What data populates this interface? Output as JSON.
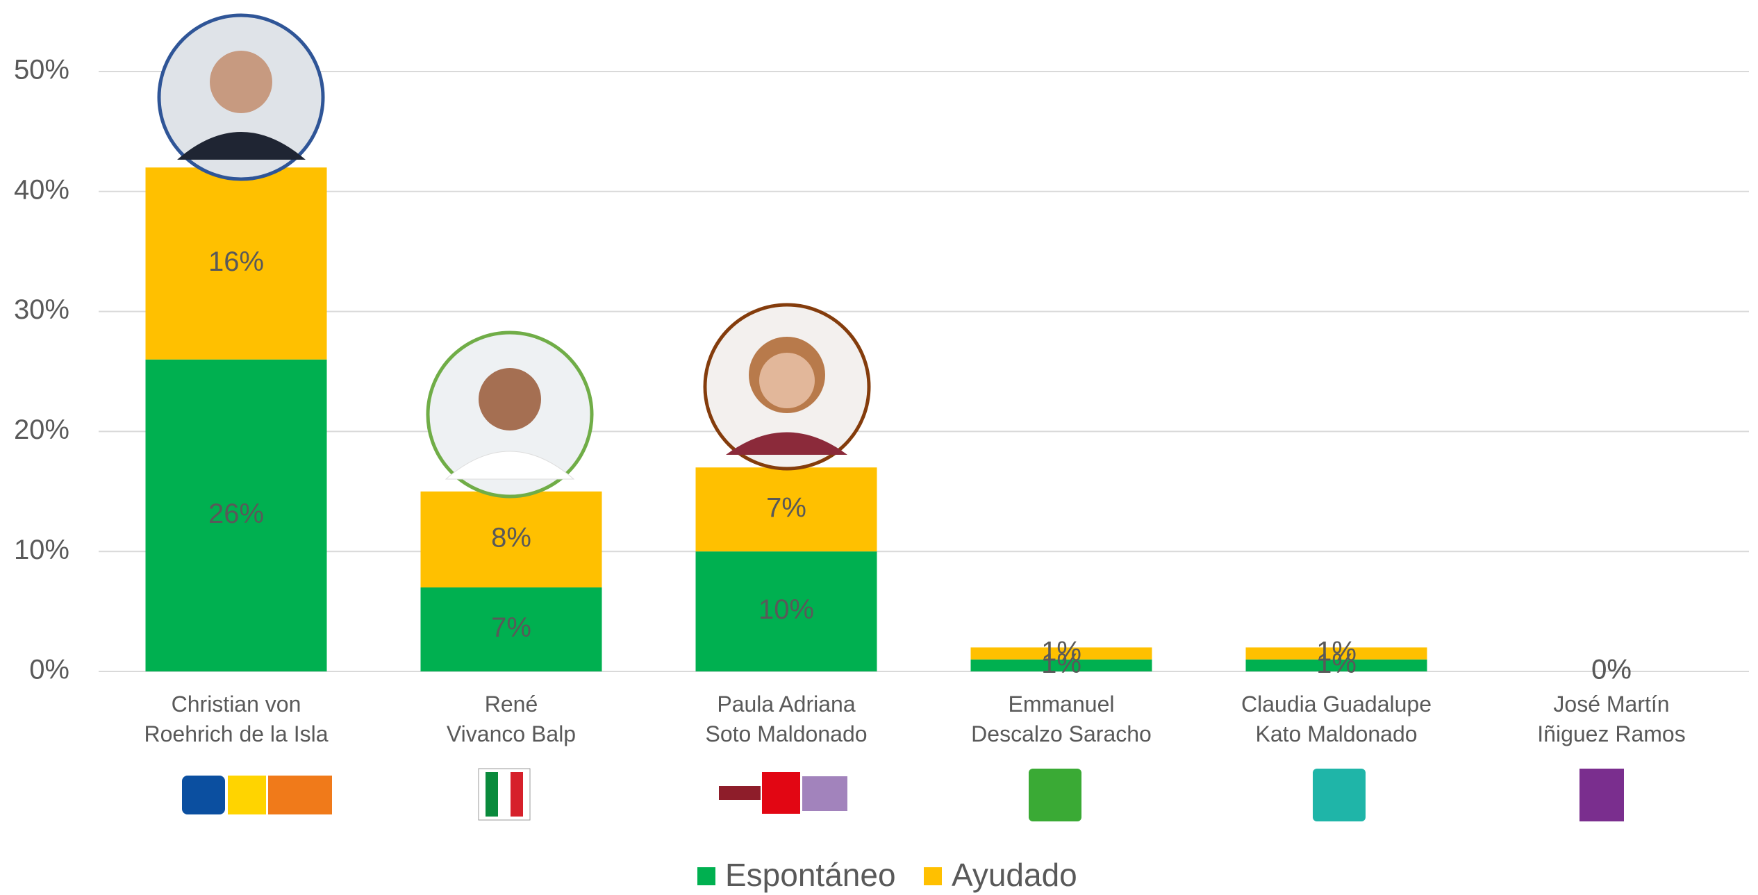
{
  "chart_data": {
    "type": "stacked_bar",
    "categories": [
      "Christian von\nRoehrich de la Isla",
      "René\nVivanco Balp",
      "Paula Adriana\nSoto Maldonado",
      "Emmanuel\nDescalzo Saracho",
      "Claudia Guadalupe\nKato Maldonado",
      "José Martín\nIñiguez Ramos"
    ],
    "series": [
      {
        "name": "Espontáneo",
        "color": "#00b050",
        "values": [
          26,
          7,
          10,
          1,
          1,
          0
        ],
        "value_labels": [
          "26%",
          "7%",
          "10%",
          "1%",
          "1%",
          "0%"
        ]
      },
      {
        "name": "Ayudado",
        "color": "#ffc000",
        "values": [
          16,
          8,
          7,
          1,
          1,
          0
        ],
        "value_labels": [
          "16%",
          "8%",
          "7%",
          "1%",
          "1%",
          "0%"
        ]
      }
    ],
    "ylim": [
      0,
      50
    ],
    "yticks": [
      {
        "value": 0,
        "label": "0%"
      },
      {
        "value": 10,
        "label": "10%"
      },
      {
        "value": 20,
        "label": "20%"
      },
      {
        "value": 30,
        "label": "30%"
      },
      {
        "value": 40,
        "label": "40%"
      },
      {
        "value": 50,
        "label": "50%"
      }
    ],
    "grid": true,
    "legend": "bottom"
  }
}
